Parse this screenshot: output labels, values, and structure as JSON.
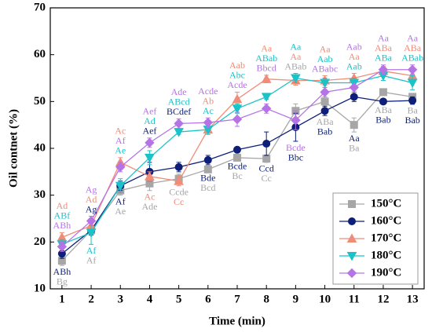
{
  "chart_data": {
    "type": "line",
    "x_label": "Time (min)",
    "y_label": "Oil contnet (%)",
    "x": [
      1,
      2,
      3,
      4,
      5,
      6,
      7,
      8,
      9,
      10,
      11,
      12,
      13
    ],
    "xlim": [
      0.6,
      13.4
    ],
    "xticks": [
      1,
      2,
      3,
      4,
      5,
      6,
      7,
      8,
      9,
      10,
      11,
      12,
      13
    ],
    "ylim": [
      10,
      70
    ],
    "yticks": [
      10,
      20,
      30,
      40,
      50,
      60,
      70
    ],
    "legend": "lower right",
    "series": [
      {
        "name": "150°C",
        "color": "#a6a6a6",
        "marker": "square",
        "values": [
          16,
          22.5,
          31,
          32.5,
          33.5,
          35.5,
          38,
          37.8,
          48,
          50,
          45,
          52,
          51
        ],
        "errors": [
          1,
          1,
          1,
          1.5,
          1,
          0.5,
          0.5,
          0.8,
          1.5,
          1.5,
          1.5,
          0.5,
          0.5
        ],
        "labels": [
          "Bg",
          "Af",
          "Ae",
          "Ade",
          "Ccde",
          "Bcd",
          "Bc",
          "Cc",
          "ABab",
          "ABa",
          "Ba",
          "ABa",
          "Ba"
        ]
      },
      {
        "name": "160°C",
        "color": "#0d1f7a",
        "marker": "circle",
        "values": [
          17.5,
          22.5,
          32,
          35,
          36,
          37.5,
          39.7,
          41,
          44.5,
          48,
          51,
          50,
          50.2
        ],
        "errors": [
          1,
          1,
          1,
          2,
          1,
          1,
          0.5,
          2.5,
          3,
          1,
          1,
          0.5,
          0.8
        ],
        "labels": [
          "ABh",
          "Ag",
          "Af",
          "Aef",
          "BCdef",
          "Bde",
          "Bcde",
          "Ccd",
          "Bbc",
          "Bab",
          "Aa",
          "Bab",
          "Bab"
        ]
      },
      {
        "name": "170°C",
        "color": "#f08c78",
        "marker": "triangle",
        "values": [
          21,
          23.5,
          37,
          34,
          33,
          44,
          50.5,
          54.8,
          54.5,
          54.5,
          55,
          56.5,
          55.5
        ],
        "errors": [
          1,
          1,
          1,
          1,
          1,
          1,
          1.5,
          0.8,
          1,
          1,
          1,
          1,
          1
        ],
        "labels": [
          "Ad",
          "Ad",
          "Ac",
          "Ac",
          "Cc",
          "Ab",
          "Aab",
          "Aa",
          "Aa",
          "Aa",
          "Aa",
          "ABa",
          "ABa"
        ]
      },
      {
        "name": "180°C",
        "color": "#19c3c8",
        "marker": "triangle-down",
        "values": [
          19.5,
          22,
          32,
          38,
          43.5,
          44,
          48.5,
          51,
          55,
          54,
          54,
          55.5,
          54
        ],
        "errors": [
          1,
          2.5,
          1.5,
          1.5,
          0.5,
          1,
          1,
          0.5,
          1,
          1,
          1,
          1,
          1.5
        ],
        "labels": [
          "ABf",
          "Af",
          "Ae",
          "Ad",
          "ABcd",
          "Ac",
          "Abc",
          "ABab",
          "Aa",
          "Aab",
          "Aab",
          "ABa",
          "ABab"
        ]
      },
      {
        "name": "190°C",
        "color": "#b673e6",
        "marker": "diamond",
        "values": [
          19,
          24.5,
          36,
          41.2,
          45.3,
          45.5,
          46.2,
          48.5,
          46,
          52,
          53,
          56.8,
          56.8
        ],
        "errors": [
          1,
          1,
          1,
          1,
          1,
          1,
          1.5,
          1,
          2,
          1,
          1,
          1,
          1
        ],
        "labels": [
          "ABh",
          "Ag",
          "Af",
          "Aef",
          "Ade",
          "Acde",
          "Acde",
          "Bbcd",
          "Bcde",
          "ABabc",
          "Aab",
          "Aa",
          "Aa"
        ]
      }
    ]
  }
}
